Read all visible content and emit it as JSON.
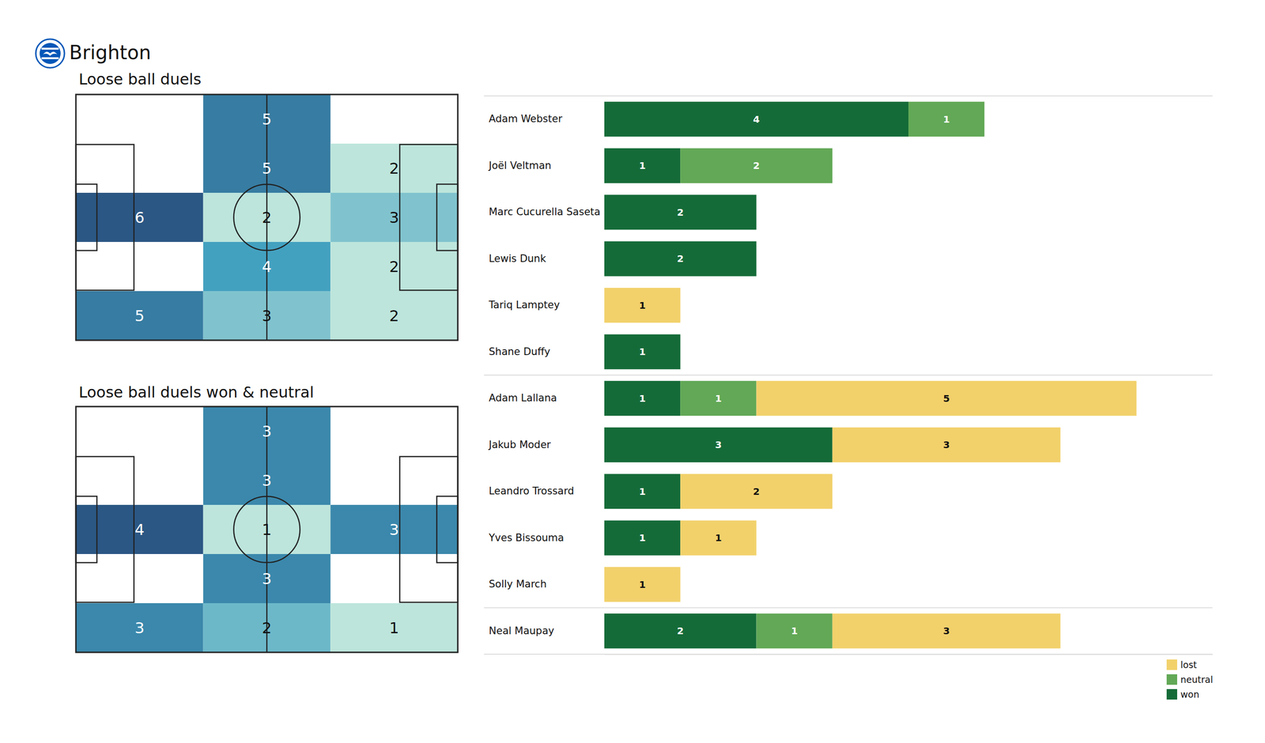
{
  "title": "Brighton",
  "chart_data": [
    {
      "type": "heatmap",
      "title": "Loose ball duels",
      "cells": [
        [
          null,
          5,
          null
        ],
        [
          null,
          5,
          2
        ],
        [
          6,
          2,
          3
        ],
        [
          null,
          4,
          2
        ],
        [
          5,
          3,
          2
        ]
      ],
      "data_labels": true,
      "tick_labels": false
    },
    {
      "type": "heatmap",
      "title": "Loose ball duels won & neutral",
      "cells": [
        [
          null,
          3,
          null
        ],
        [
          null,
          3,
          null
        ],
        [
          4,
          1,
          3
        ],
        [
          null,
          3,
          null
        ],
        [
          3,
          2,
          1
        ]
      ],
      "data_labels": true,
      "tick_labels": false
    },
    {
      "type": "bar",
      "orientation": "horizontal",
      "stacked": true,
      "data_labels": true,
      "tick_labels": "y",
      "legend": "lower right",
      "categories": [
        "Adam Webster",
        "Joël Veltman",
        "Marc Cucurella Saseta",
        "Lewis Dunk",
        "Tariq Lamptey",
        "Shane Duffy",
        "Adam Lallana",
        "Jakub Moder",
        "Leandro Trossard",
        "Yves Bissouma",
        "Solly March",
        "Neal Maupay"
      ],
      "xlim": [
        0,
        8
      ],
      "series": [
        {
          "name": "won",
          "color": "#156b38",
          "values": [
            4,
            1,
            2,
            2,
            0,
            1,
            1,
            3,
            1,
            1,
            0,
            2
          ]
        },
        {
          "name": "neutral",
          "color": "#62a856",
          "values": [
            1,
            2,
            0,
            0,
            0,
            0,
            1,
            0,
            0,
            0,
            0,
            1
          ]
        },
        {
          "name": "lost",
          "color": "#f2d16b",
          "values": [
            0,
            0,
            0,
            0,
            1,
            0,
            5,
            3,
            2,
            1,
            1,
            3
          ]
        }
      ]
    }
  ]
}
